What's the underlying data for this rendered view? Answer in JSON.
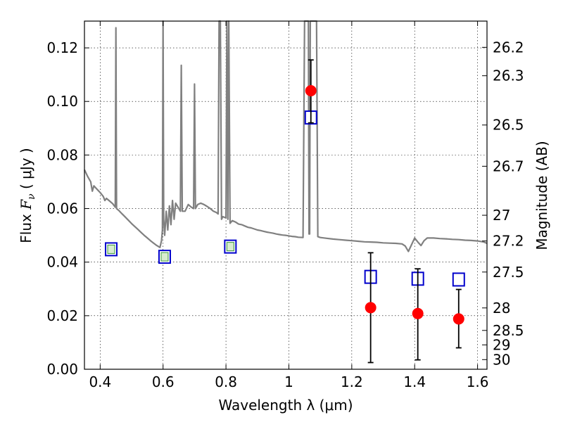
{
  "chart_data": {
    "type": "scatter",
    "title": "",
    "xlabel": "Wavelength  λ (μm)",
    "ylabel_prefix": "Flux  ",
    "ylabel_symbol": "F",
    "ylabel_sub": "ν",
    "ylabel_unit": "  ( μJy )",
    "ylabel_right": "Magnitude (AB)",
    "xlim": [
      0.35,
      1.63
    ],
    "ylim": [
      0.0,
      0.13
    ],
    "grid": true,
    "xticks": [
      0.4,
      0.6,
      0.8,
      1.0,
      1.2,
      1.4,
      1.6
    ],
    "xtick_labels": [
      "0.4",
      "0.6",
      "0.8",
      "1",
      "1.2",
      "1.4",
      "1.6"
    ],
    "yticks": [
      0.0,
      0.02,
      0.04,
      0.06,
      0.08,
      0.1,
      0.12
    ],
    "ytick_labels": [
      "0.00",
      "0.02",
      "0.04",
      "0.06",
      "0.08",
      "0.10",
      "0.12"
    ],
    "right_ticks": [
      {
        "label": "26.2",
        "flux": 0.1202
      },
      {
        "label": "26.3",
        "flux": 0.1096
      },
      {
        "label": "26.5",
        "flux": 0.0912
      },
      {
        "label": "26.7",
        "flux": 0.0758
      },
      {
        "label": "27",
        "flux": 0.0575
      },
      {
        "label": "27.2",
        "flux": 0.0479
      },
      {
        "label": "27.5",
        "flux": 0.0363
      },
      {
        "label": "28",
        "flux": 0.0229
      },
      {
        "label": "28.5",
        "flux": 0.0145
      },
      {
        "label": "29",
        "flux": 0.0091
      },
      {
        "label": "30",
        "flux": 0.0036
      }
    ],
    "series": [
      {
        "kind": "line",
        "color": "#808080",
        "points": [
          [
            0.35,
            0.0745
          ],
          [
            0.36,
            0.072
          ],
          [
            0.37,
            0.07
          ],
          [
            0.375,
            0.0665
          ],
          [
            0.38,
            0.0685
          ],
          [
            0.39,
            0.0672
          ],
          [
            0.4,
            0.066
          ],
          [
            0.41,
            0.0645
          ],
          [
            0.415,
            0.063
          ],
          [
            0.42,
            0.0638
          ],
          [
            0.43,
            0.0628
          ],
          [
            0.44,
            0.0618
          ],
          [
            0.448,
            0.0605
          ],
          [
            0.45,
            0.1275
          ],
          [
            0.452,
            0.06
          ],
          [
            0.46,
            0.0592
          ],
          [
            0.47,
            0.058
          ],
          [
            0.48,
            0.0568
          ],
          [
            0.49,
            0.0556
          ],
          [
            0.5,
            0.0544
          ],
          [
            0.51,
            0.0533
          ],
          [
            0.52,
            0.0522
          ],
          [
            0.53,
            0.0511
          ],
          [
            0.54,
            0.05
          ],
          [
            0.55,
            0.049
          ],
          [
            0.56,
            0.048
          ],
          [
            0.57,
            0.0471
          ],
          [
            0.58,
            0.0462
          ],
          [
            0.59,
            0.0455
          ],
          [
            0.595,
            0.048
          ],
          [
            0.598,
            0.052
          ],
          [
            0.6,
            0.13
          ],
          [
            0.602,
            0.056
          ],
          [
            0.605,
            0.05
          ],
          [
            0.61,
            0.059
          ],
          [
            0.615,
            0.052
          ],
          [
            0.62,
            0.061
          ],
          [
            0.625,
            0.054
          ],
          [
            0.63,
            0.063
          ],
          [
            0.635,
            0.056
          ],
          [
            0.64,
            0.062
          ],
          [
            0.65,
            0.06
          ],
          [
            0.655,
            0.059
          ],
          [
            0.658,
            0.1135
          ],
          [
            0.661,
            0.059
          ],
          [
            0.67,
            0.059
          ],
          [
            0.68,
            0.0615
          ],
          [
            0.69,
            0.0605
          ],
          [
            0.697,
            0.06
          ],
          [
            0.7,
            0.1065
          ],
          [
            0.703,
            0.06
          ],
          [
            0.71,
            0.0615
          ],
          [
            0.72,
            0.062
          ],
          [
            0.73,
            0.0615
          ],
          [
            0.74,
            0.0608
          ],
          [
            0.75,
            0.06
          ],
          [
            0.76,
            0.059
          ],
          [
            0.77,
            0.0585
          ],
          [
            0.775,
            0.058
          ],
          [
            0.778,
            0.13
          ],
          [
            0.782,
            0.13
          ],
          [
            0.786,
            0.056
          ],
          [
            0.79,
            0.057
          ],
          [
            0.8,
            0.0565
          ],
          [
            0.803,
            0.13
          ],
          [
            0.806,
            0.056
          ],
          [
            0.809,
            0.13
          ],
          [
            0.813,
            0.0545
          ],
          [
            0.82,
            0.0555
          ],
          [
            0.83,
            0.055
          ],
          [
            0.84,
            0.0542
          ],
          [
            0.85,
            0.054
          ],
          [
            0.86,
            0.0535
          ],
          [
            0.87,
            0.053
          ],
          [
            0.88,
            0.0528
          ],
          [
            0.89,
            0.0524
          ],
          [
            0.9,
            0.052
          ],
          [
            0.91,
            0.0518
          ],
          [
            0.92,
            0.0515
          ],
          [
            0.93,
            0.0512
          ],
          [
            0.94,
            0.051
          ],
          [
            0.95,
            0.0508
          ],
          [
            0.96,
            0.0505
          ],
          [
            0.97,
            0.0503
          ],
          [
            0.98,
            0.0501
          ],
          [
            0.99,
            0.05
          ],
          [
            1.0,
            0.0498
          ],
          [
            1.01,
            0.0496
          ],
          [
            1.02,
            0.0495
          ],
          [
            1.03,
            0.0493
          ],
          [
            1.045,
            0.0492
          ],
          [
            1.05,
            0.13
          ],
          [
            1.062,
            0.13
          ],
          [
            1.064,
            0.0505
          ],
          [
            1.066,
            0.0505
          ],
          [
            1.068,
            0.13
          ],
          [
            1.088,
            0.13
          ],
          [
            1.092,
            0.0495
          ],
          [
            1.1,
            0.0492
          ],
          [
            1.12,
            0.0489
          ],
          [
            1.14,
            0.0486
          ],
          [
            1.16,
            0.0484
          ],
          [
            1.18,
            0.0482
          ],
          [
            1.2,
            0.048
          ],
          [
            1.22,
            0.0478
          ],
          [
            1.24,
            0.0476
          ],
          [
            1.26,
            0.0475
          ],
          [
            1.28,
            0.0474
          ],
          [
            1.3,
            0.0472
          ],
          [
            1.32,
            0.0471
          ],
          [
            1.34,
            0.047
          ],
          [
            1.36,
            0.0468
          ],
          [
            1.37,
            0.046
          ],
          [
            1.38,
            0.044
          ],
          [
            1.39,
            0.0465
          ],
          [
            1.4,
            0.049
          ],
          [
            1.41,
            0.0475
          ],
          [
            1.42,
            0.0462
          ],
          [
            1.43,
            0.048
          ],
          [
            1.44,
            0.049
          ],
          [
            1.46,
            0.049
          ],
          [
            1.48,
            0.0488
          ],
          [
            1.5,
            0.0487
          ],
          [
            1.52,
            0.0485
          ],
          [
            1.54,
            0.0484
          ],
          [
            1.56,
            0.0482
          ],
          [
            1.58,
            0.0481
          ],
          [
            1.6,
            0.0479
          ],
          [
            1.62,
            0.0475
          ],
          [
            1.63,
            0.047
          ]
        ]
      },
      {
        "kind": "squares",
        "color": "#0000cc",
        "fill": "#d8ecd0",
        "points": [
          [
            0.435,
            0.0448
          ],
          [
            0.605,
            0.042
          ],
          [
            0.814,
            0.0458
          ],
          [
            1.07,
            0.094
          ],
          [
            1.26,
            0.0345
          ],
          [
            1.41,
            0.0338
          ],
          [
            1.54,
            0.0335
          ]
        ]
      },
      {
        "kind": "points_with_errors",
        "color": "#ff0000",
        "points": [
          {
            "x": 1.07,
            "y": 0.104,
            "ylo": 0.092,
            "yhi": 0.1155
          },
          {
            "x": 1.26,
            "y": 0.023,
            "ylo": 0.0025,
            "yhi": 0.0435
          },
          {
            "x": 1.41,
            "y": 0.0208,
            "ylo": 0.0035,
            "yhi": 0.0375
          },
          {
            "x": 1.54,
            "y": 0.0188,
            "ylo": 0.008,
            "yhi": 0.0298
          }
        ]
      }
    ]
  }
}
